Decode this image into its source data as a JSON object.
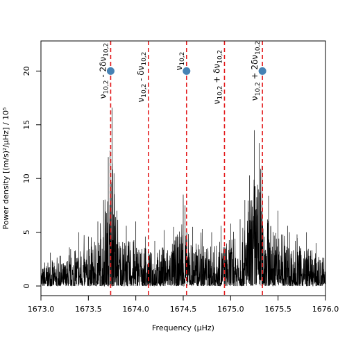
{
  "chart_data": {
    "type": "line",
    "title": "",
    "xlabel": "Frequency (μHz)",
    "ylabel": "Power density [(m/s)²/μHz] / 10⁵",
    "xlim": [
      1673.0,
      1676.0
    ],
    "ylim": [
      -0.9,
      22.8
    ],
    "xticks": [
      1673.0,
      1673.5,
      1674.0,
      1674.5,
      1675.0,
      1675.5,
      1676.0
    ],
    "xtick_labels": [
      "1673.0",
      "1673.5",
      "1674.0",
      "1674.5",
      "1675.0",
      "1675.5",
      "1676.0"
    ],
    "yticks": [
      0,
      5,
      10,
      15,
      20
    ],
    "ytick_labels": [
      "0",
      "5",
      "10",
      "15",
      "20"
    ],
    "grid": false,
    "series": [
      {
        "color": "#000000",
        "envelope": [
          {
            "x": 1673.0,
            "y": 2.4
          },
          {
            "x": 1673.1,
            "y": 3.1
          },
          {
            "x": 1673.2,
            "y": 2.8
          },
          {
            "x": 1673.3,
            "y": 3.6
          },
          {
            "x": 1673.4,
            "y": 5.0
          },
          {
            "x": 1673.5,
            "y": 4.6
          },
          {
            "x": 1673.6,
            "y": 6.0
          },
          {
            "x": 1673.66,
            "y": 8.0
          },
          {
            "x": 1673.71,
            "y": 12.0
          },
          {
            "x": 1673.73,
            "y": 12.6
          },
          {
            "x": 1673.75,
            "y": 16.6
          },
          {
            "x": 1673.77,
            "y": 10.5
          },
          {
            "x": 1673.8,
            "y": 7.0
          },
          {
            "x": 1673.9,
            "y": 5.6
          },
          {
            "x": 1674.0,
            "y": 6.0
          },
          {
            "x": 1674.1,
            "y": 4.6
          },
          {
            "x": 1674.2,
            "y": 4.2
          },
          {
            "x": 1674.3,
            "y": 5.2
          },
          {
            "x": 1674.4,
            "y": 5.5
          },
          {
            "x": 1674.5,
            "y": 8.5
          },
          {
            "x": 1674.52,
            "y": 7.5
          },
          {
            "x": 1674.6,
            "y": 5.5
          },
          {
            "x": 1674.7,
            "y": 5.3
          },
          {
            "x": 1674.8,
            "y": 5.0
          },
          {
            "x": 1674.9,
            "y": 5.6
          },
          {
            "x": 1675.0,
            "y": 5.8
          },
          {
            "x": 1675.1,
            "y": 6.2
          },
          {
            "x": 1675.15,
            "y": 8.0
          },
          {
            "x": 1675.2,
            "y": 10.3
          },
          {
            "x": 1675.25,
            "y": 14.5
          },
          {
            "x": 1675.3,
            "y": 13.3
          },
          {
            "x": 1675.33,
            "y": 11.2
          },
          {
            "x": 1675.4,
            "y": 8.4
          },
          {
            "x": 1675.5,
            "y": 7.0
          },
          {
            "x": 1675.6,
            "y": 5.6
          },
          {
            "x": 1675.7,
            "y": 4.8
          },
          {
            "x": 1675.8,
            "y": 5.0
          },
          {
            "x": 1675.9,
            "y": 4.0
          },
          {
            "x": 1676.0,
            "y": 3.0
          }
        ]
      }
    ],
    "reference_lines": [
      {
        "x": 1673.735,
        "color": "#e31a1c",
        "style": "dashed",
        "label_parts": [
          [
            "ν",
            ""
          ],
          [
            "10,2",
            "sub"
          ],
          [
            " - 2δν",
            ""
          ],
          [
            "10,2",
            "sub"
          ]
        ],
        "label_center_y": 102
      },
      {
        "x": 1674.135,
        "color": "#e31a1c",
        "style": "dashed",
        "label_parts": [
          [
            "ν",
            ""
          ],
          [
            "10,2",
            "sub"
          ],
          [
            " - δν",
            ""
          ],
          [
            "10,2",
            "sub"
          ]
        ],
        "label_center_y": 111
      },
      {
        "x": 1674.535,
        "color": "#e31a1c",
        "style": "dashed",
        "label_parts": [
          [
            "ν",
            ""
          ],
          [
            "10,2",
            "sub"
          ]
        ],
        "label_center_y": 88
      },
      {
        "x": 1674.935,
        "color": "#e31a1c",
        "style": "dashed",
        "label_parts": [
          [
            "ν",
            ""
          ],
          [
            "10,2",
            "sub"
          ],
          [
            " + δν",
            ""
          ],
          [
            "10,2",
            "sub"
          ]
        ],
        "label_center_y": 111
      },
      {
        "x": 1675.335,
        "color": "#e31a1c",
        "style": "dashed",
        "label_parts": [
          [
            "ν",
            ""
          ],
          [
            "10,2",
            "sub"
          ],
          [
            " + 2δν",
            ""
          ],
          [
            "10,2",
            "sub"
          ]
        ],
        "label_center_y": 102
      }
    ],
    "markers": [
      {
        "x": 1673.735,
        "y": 20,
        "color": "#4682b4"
      },
      {
        "x": 1674.535,
        "y": 20,
        "color": "#4682b4"
      },
      {
        "x": 1675.335,
        "y": 20,
        "color": "#4682b4"
      }
    ]
  }
}
